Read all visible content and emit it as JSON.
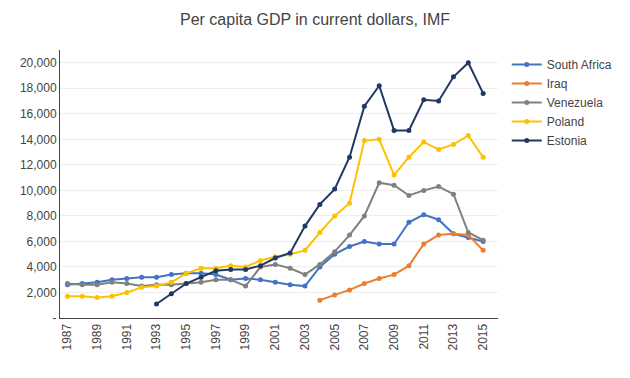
{
  "chart_data": {
    "type": "line",
    "title": "Per capita GDP in current dollars, IMF",
    "x": [
      1987,
      1988,
      1989,
      1990,
      1991,
      1992,
      1993,
      1994,
      1995,
      1996,
      1997,
      1998,
      1999,
      2000,
      2001,
      2002,
      2003,
      2004,
      2005,
      2006,
      2007,
      2008,
      2009,
      2010,
      2011,
      2012,
      2013,
      2014,
      2015
    ],
    "series": [
      {
        "name": "South Africa",
        "color": "#4472C4",
        "values": [
          2600,
          2700,
          2800,
          3000,
          3100,
          3200,
          3200,
          3400,
          3500,
          3500,
          3400,
          3000,
          3100,
          3000,
          2800,
          2600,
          2500,
          4000,
          5000,
          5600,
          6000,
          5800,
          5800,
          7500,
          8100,
          7700,
          6600,
          6300,
          6000
        ]
      },
      {
        "name": "Iraq",
        "color": "#ED7D31",
        "values": [
          null,
          null,
          null,
          null,
          null,
          null,
          null,
          null,
          null,
          null,
          null,
          null,
          null,
          null,
          null,
          null,
          null,
          1400,
          1800,
          2200,
          2700,
          3100,
          3400,
          4100,
          5800,
          6500,
          6600,
          6500,
          5300
        ]
      },
      {
        "name": "Venezuela",
        "color": "#808080",
        "values": [
          2700,
          2600,
          2600,
          2800,
          2700,
          2500,
          2600,
          2600,
          2700,
          2800,
          3000,
          3000,
          2500,
          4000,
          4200,
          3900,
          3400,
          4200,
          5200,
          6500,
          8000,
          10600,
          10400,
          9600,
          10000,
          10300,
          9700,
          6700,
          6100
        ]
      },
      {
        "name": "Poland",
        "color": "#FFC000",
        "values": [
          1700,
          1700,
          1600,
          1700,
          2000,
          2400,
          2500,
          2800,
          3500,
          3900,
          3900,
          4100,
          4000,
          4500,
          4800,
          5000,
          5300,
          6700,
          8000,
          9000,
          13900,
          14000,
          11200,
          12600,
          13800,
          13200,
          13600,
          14300,
          12600
        ]
      },
      {
        "name": "Estonia",
        "color": "#1F3864",
        "values": [
          null,
          null,
          null,
          null,
          null,
          null,
          1100,
          1900,
          2700,
          3200,
          3700,
          3800,
          3800,
          4100,
          4700,
          5100,
          7200,
          8900,
          10100,
          12600,
          16600,
          18200,
          14700,
          14700,
          17100,
          17000,
          18900,
          20000,
          17600
        ]
      }
    ],
    "xlim": [
      1986.5,
      2016
    ],
    "xticks": [
      1987,
      1989,
      1991,
      1993,
      1995,
      1997,
      1999,
      2001,
      2003,
      2005,
      2007,
      2009,
      2011,
      2013,
      2015
    ],
    "ylim": [
      0,
      21000
    ],
    "yticks": [
      {
        "value": 0,
        "label": "-"
      },
      {
        "value": 2000,
        "label": "2,000"
      },
      {
        "value": 4000,
        "label": "4,000"
      },
      {
        "value": 6000,
        "label": "6,000"
      },
      {
        "value": 8000,
        "label": "8,000"
      },
      {
        "value": 10000,
        "label": "10,000"
      },
      {
        "value": 12000,
        "label": "12,000"
      },
      {
        "value": 14000,
        "label": "14,000"
      },
      {
        "value": 16000,
        "label": "16,000"
      },
      {
        "value": 18000,
        "label": "18,000"
      },
      {
        "value": 20000,
        "label": "20,000"
      }
    ],
    "grid": "y",
    "legend": "upper right",
    "marker": "circle"
  }
}
